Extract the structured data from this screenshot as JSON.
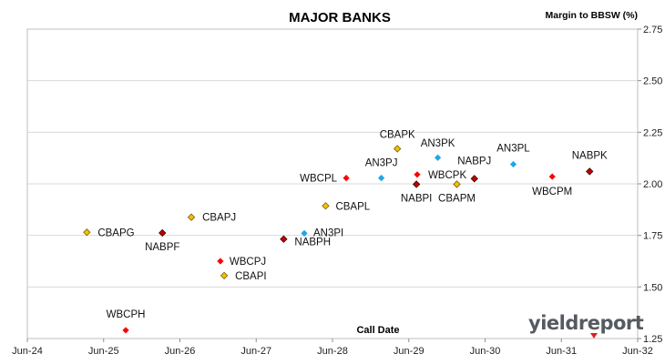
{
  "chart_data": {
    "type": "scatter",
    "title": "MAJOR BANKS",
    "ylabel": "Margin to BBSW (%)",
    "xlabel": "Call Date",
    "x_ticks": [
      "Jun-24",
      "Jun-25",
      "Jun-26",
      "Jun-27",
      "Jun-28",
      "Jun-29",
      "Jun-30",
      "Jun-31",
      "Jun-32"
    ],
    "y_ticks": [
      "1.25",
      "1.50",
      "1.75",
      "2.00",
      "2.25",
      "2.50",
      "2.75"
    ],
    "ylim": [
      1.25,
      2.75
    ],
    "xlim": [
      2024.5,
      2032.5
    ],
    "grid": "horizontal",
    "colors": {
      "gold": "#f2c200",
      "red": "#ff0000",
      "cyan": "#1fa7e8",
      "darkred": "#c00000"
    },
    "points": [
      {
        "label": "CBAPG",
        "x": 2025.28,
        "y": 1.765,
        "color": "gold"
      },
      {
        "label": "WBCPH",
        "x": 2025.79,
        "y": 1.29,
        "color": "red"
      },
      {
        "label": "NABPF",
        "x": 2026.27,
        "y": 1.762,
        "color": "darkred"
      },
      {
        "label": "CBAPJ",
        "x": 2026.65,
        "y": 1.838,
        "color": "gold"
      },
      {
        "label": "WBCPJ",
        "x": 2027.03,
        "y": 1.625,
        "color": "red"
      },
      {
        "label": "CBAPI",
        "x": 2027.08,
        "y": 1.555,
        "color": "gold"
      },
      {
        "label": "NABPH",
        "x": 2027.86,
        "y": 1.732,
        "color": "darkred"
      },
      {
        "label": "AN3PI",
        "x": 2028.13,
        "y": 1.76,
        "color": "cyan"
      },
      {
        "label": "CBAPL",
        "x": 2028.41,
        "y": 1.893,
        "color": "gold"
      },
      {
        "label": "WBCPL",
        "x": 2028.68,
        "y": 2.028,
        "color": "red"
      },
      {
        "label": "AN3PJ",
        "x": 2029.14,
        "y": 2.028,
        "color": "cyan"
      },
      {
        "label": "CBAPK",
        "x": 2029.35,
        "y": 2.17,
        "color": "gold"
      },
      {
        "label": "WBCPK",
        "x": 2029.61,
        "y": 2.045,
        "color": "red"
      },
      {
        "label": "NABPI",
        "x": 2029.6,
        "y": 1.998,
        "color": "darkred"
      },
      {
        "label": "AN3PK",
        "x": 2029.88,
        "y": 2.127,
        "color": "cyan"
      },
      {
        "label": "CBAPM",
        "x": 2030.13,
        "y": 1.998,
        "color": "gold"
      },
      {
        "label": "NABPJ",
        "x": 2030.36,
        "y": 2.025,
        "color": "darkred"
      },
      {
        "label": "AN3PL",
        "x": 2030.87,
        "y": 2.095,
        "color": "cyan"
      },
      {
        "label": "WBCPM",
        "x": 2031.38,
        "y": 2.035,
        "color": "red"
      },
      {
        "label": "NABPK",
        "x": 2031.87,
        "y": 2.06,
        "color": "darkred"
      }
    ]
  },
  "branding": {
    "logo": "yieldreport"
  }
}
